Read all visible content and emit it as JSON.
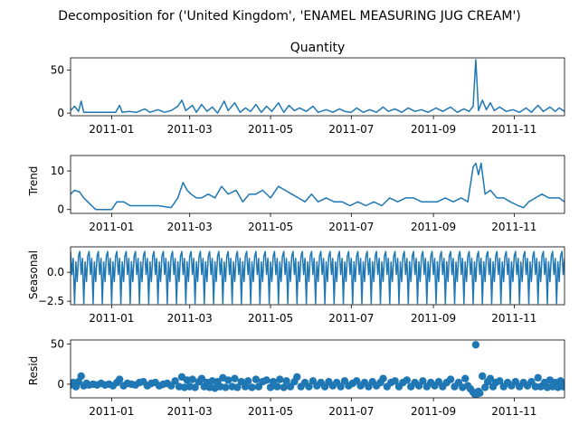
{
  "figure": {
    "suptitle": "Decomposition for ('United Kingdom', 'ENAMEL MEASURING JUG CREAM')"
  },
  "colors": {
    "series": "#1f77b4",
    "axis": "#000000",
    "background": "#ffffff"
  },
  "chart_data": [
    {
      "type": "line",
      "title": "Quantity",
      "ylabel": "",
      "x_range": [
        "2010-12-01",
        "2011-12-09"
      ],
      "x_ticks": [
        "2011-01",
        "2011-03",
        "2011-05",
        "2011-07",
        "2011-09",
        "2011-11"
      ],
      "ylim": [
        -3,
        64
      ],
      "y_ticks": [
        0,
        50
      ],
      "y_tick_labels": [
        "0",
        "50"
      ],
      "grid": false,
      "points": [
        [
          "2010-12-01",
          3
        ],
        [
          "2010-12-04",
          8
        ],
        [
          "2010-12-07",
          2
        ],
        [
          "2010-12-09",
          14
        ],
        [
          "2010-12-11",
          1
        ],
        [
          "2010-12-15",
          1
        ],
        [
          "2010-12-20",
          1
        ],
        [
          "2010-12-28",
          1
        ],
        [
          "2011-01-04",
          1
        ],
        [
          "2011-01-07",
          9
        ],
        [
          "2011-01-09",
          1
        ],
        [
          "2011-01-14",
          2
        ],
        [
          "2011-01-20",
          1
        ],
        [
          "2011-01-26",
          5
        ],
        [
          "2011-01-30",
          1
        ],
        [
          "2011-02-05",
          4
        ],
        [
          "2011-02-10",
          1
        ],
        [
          "2011-02-15",
          3
        ],
        [
          "2011-02-20",
          8
        ],
        [
          "2011-02-23",
          15
        ],
        [
          "2011-02-26",
          3
        ],
        [
          "2011-03-03",
          9
        ],
        [
          "2011-03-06",
          1
        ],
        [
          "2011-03-10",
          10
        ],
        [
          "2011-03-14",
          2
        ],
        [
          "2011-03-18",
          7
        ],
        [
          "2011-03-22",
          0
        ],
        [
          "2011-03-27",
          14
        ],
        [
          "2011-03-30",
          3
        ],
        [
          "2011-04-04",
          12
        ],
        [
          "2011-04-08",
          1
        ],
        [
          "2011-04-12",
          6
        ],
        [
          "2011-04-16",
          2
        ],
        [
          "2011-04-20",
          10
        ],
        [
          "2011-04-24",
          1
        ],
        [
          "2011-04-28",
          8
        ],
        [
          "2011-05-02",
          2
        ],
        [
          "2011-05-07",
          12
        ],
        [
          "2011-05-11",
          1
        ],
        [
          "2011-05-15",
          9
        ],
        [
          "2011-05-19",
          3
        ],
        [
          "2011-05-23",
          6
        ],
        [
          "2011-05-28",
          2
        ],
        [
          "2011-06-02",
          8
        ],
        [
          "2011-06-06",
          1
        ],
        [
          "2011-06-12",
          4
        ],
        [
          "2011-06-17",
          1
        ],
        [
          "2011-06-22",
          5
        ],
        [
          "2011-06-26",
          2
        ],
        [
          "2011-07-01",
          1
        ],
        [
          "2011-07-05",
          6
        ],
        [
          "2011-07-10",
          1
        ],
        [
          "2011-07-15",
          4
        ],
        [
          "2011-07-20",
          1
        ],
        [
          "2011-07-25",
          7
        ],
        [
          "2011-07-29",
          2
        ],
        [
          "2011-08-03",
          5
        ],
        [
          "2011-08-08",
          1
        ],
        [
          "2011-08-13",
          6
        ],
        [
          "2011-08-18",
          2
        ],
        [
          "2011-08-23",
          4
        ],
        [
          "2011-08-28",
          1
        ],
        [
          "2011-09-03",
          6
        ],
        [
          "2011-09-08",
          2
        ],
        [
          "2011-09-14",
          7
        ],
        [
          "2011-09-19",
          1
        ],
        [
          "2011-09-24",
          5
        ],
        [
          "2011-09-28",
          2
        ],
        [
          "2011-10-01",
          8
        ],
        [
          "2011-10-03",
          62
        ],
        [
          "2011-10-05",
          3
        ],
        [
          "2011-10-08",
          15
        ],
        [
          "2011-10-11",
          4
        ],
        [
          "2011-10-14",
          12
        ],
        [
          "2011-10-17",
          3
        ],
        [
          "2011-10-21",
          7
        ],
        [
          "2011-10-26",
          2
        ],
        [
          "2011-10-31",
          4
        ],
        [
          "2011-11-05",
          1
        ],
        [
          "2011-11-10",
          6
        ],
        [
          "2011-11-14",
          1
        ],
        [
          "2011-11-19",
          9
        ],
        [
          "2011-11-23",
          2
        ],
        [
          "2011-11-28",
          7
        ],
        [
          "2011-12-02",
          2
        ],
        [
          "2011-12-05",
          6
        ],
        [
          "2011-12-09",
          2
        ]
      ]
    },
    {
      "type": "line",
      "title": "",
      "ylabel": "Trend",
      "x_range": [
        "2010-12-01",
        "2011-12-09"
      ],
      "x_ticks": [
        "2011-01",
        "2011-03",
        "2011-05",
        "2011-07",
        "2011-09",
        "2011-11"
      ],
      "ylim": [
        -1,
        14
      ],
      "y_ticks": [
        0,
        10
      ],
      "y_tick_labels": [
        "0",
        "10"
      ],
      "grid": false,
      "points": [
        [
          "2010-12-01",
          4
        ],
        [
          "2010-12-04",
          5
        ],
        [
          "2010-12-08",
          4.5
        ],
        [
          "2010-12-11",
          3
        ],
        [
          "2010-12-14",
          2
        ],
        [
          "2010-12-17",
          1
        ],
        [
          "2010-12-20",
          0
        ],
        [
          "2011-01-01",
          0
        ],
        [
          "2011-01-05",
          2
        ],
        [
          "2011-01-10",
          2
        ],
        [
          "2011-01-15",
          1
        ],
        [
          "2011-01-25",
          1
        ],
        [
          "2011-02-05",
          1
        ],
        [
          "2011-02-15",
          0.5
        ],
        [
          "2011-02-20",
          3
        ],
        [
          "2011-02-24",
          7
        ],
        [
          "2011-02-27",
          5
        ],
        [
          "2011-03-02",
          4
        ],
        [
          "2011-03-06",
          3
        ],
        [
          "2011-03-10",
          3
        ],
        [
          "2011-03-15",
          4
        ],
        [
          "2011-03-20",
          3
        ],
        [
          "2011-03-25",
          6
        ],
        [
          "2011-03-30",
          4
        ],
        [
          "2011-04-05",
          5
        ],
        [
          "2011-04-10",
          2
        ],
        [
          "2011-04-15",
          4
        ],
        [
          "2011-04-20",
          4
        ],
        [
          "2011-04-25",
          5
        ],
        [
          "2011-05-01",
          3
        ],
        [
          "2011-05-07",
          6
        ],
        [
          "2011-05-12",
          5
        ],
        [
          "2011-05-17",
          4
        ],
        [
          "2011-05-22",
          3
        ],
        [
          "2011-05-27",
          2
        ],
        [
          "2011-06-01",
          4
        ],
        [
          "2011-06-06",
          2
        ],
        [
          "2011-06-12",
          3
        ],
        [
          "2011-06-18",
          2
        ],
        [
          "2011-06-24",
          2
        ],
        [
          "2011-06-30",
          1
        ],
        [
          "2011-07-06",
          2
        ],
        [
          "2011-07-12",
          1
        ],
        [
          "2011-07-18",
          2
        ],
        [
          "2011-07-24",
          1
        ],
        [
          "2011-07-30",
          3
        ],
        [
          "2011-08-05",
          2
        ],
        [
          "2011-08-11",
          3
        ],
        [
          "2011-08-17",
          3
        ],
        [
          "2011-08-23",
          2
        ],
        [
          "2011-08-29",
          2
        ],
        [
          "2011-09-04",
          2
        ],
        [
          "2011-09-10",
          3
        ],
        [
          "2011-09-16",
          2
        ],
        [
          "2011-09-22",
          3
        ],
        [
          "2011-09-27",
          2
        ],
        [
          "2011-10-01",
          11
        ],
        [
          "2011-10-03",
          12
        ],
        [
          "2011-10-05",
          9
        ],
        [
          "2011-10-07",
          12
        ],
        [
          "2011-10-10",
          4
        ],
        [
          "2011-10-14",
          5
        ],
        [
          "2011-10-19",
          3
        ],
        [
          "2011-10-24",
          3
        ],
        [
          "2011-10-29",
          2
        ],
        [
          "2011-11-04",
          1
        ],
        [
          "2011-11-08",
          0.5
        ],
        [
          "2011-11-12",
          2
        ],
        [
          "2011-11-17",
          3
        ],
        [
          "2011-11-22",
          4
        ],
        [
          "2011-11-27",
          3
        ],
        [
          "2011-12-01",
          3
        ],
        [
          "2011-12-05",
          3
        ],
        [
          "2011-12-09",
          2
        ]
      ]
    },
    {
      "type": "line",
      "title": "",
      "ylabel": "Seasonal",
      "x_range": [
        "2010-12-01",
        "2011-12-09"
      ],
      "x_ticks": [
        "2011-01",
        "2011-03",
        "2011-05",
        "2011-07",
        "2011-09",
        "2011-11"
      ],
      "ylim": [
        -2.8,
        2.2
      ],
      "y_ticks": [
        0,
        -2.5
      ],
      "y_tick_labels": [
        "0.0",
        "−2.5"
      ],
      "grid": false,
      "period_days": 7,
      "weekly_pattern": [
        1.8,
        -0.2,
        1.2,
        -2.7,
        0.9,
        -0.8,
        1.4
      ]
    },
    {
      "type": "scatter",
      "title": "",
      "ylabel": "Resid",
      "x_range": [
        "2010-12-01",
        "2011-12-09"
      ],
      "x_ticks": [
        "2011-01",
        "2011-03",
        "2011-05",
        "2011-07",
        "2011-09",
        "2011-11"
      ],
      "ylim": [
        -17,
        55
      ],
      "y_ticks": [
        0,
        50
      ],
      "y_tick_labels": [
        "0",
        "50"
      ],
      "grid": false,
      "points": [
        [
          "2010-12-01",
          -1
        ],
        [
          "2010-12-03",
          2
        ],
        [
          "2010-12-05",
          -3
        ],
        [
          "2010-12-07",
          3
        ],
        [
          "2010-12-09",
          10
        ],
        [
          "2010-12-11",
          -2
        ],
        [
          "2010-12-13",
          1
        ],
        [
          "2010-12-15",
          -1
        ],
        [
          "2010-12-18",
          0
        ],
        [
          "2010-12-21",
          -1
        ],
        [
          "2010-12-24",
          1
        ],
        [
          "2010-12-27",
          -1
        ],
        [
          "2010-12-30",
          0
        ],
        [
          "2011-01-02",
          -2
        ],
        [
          "2011-01-05",
          2
        ],
        [
          "2011-01-07",
          6
        ],
        [
          "2011-01-10",
          -2
        ],
        [
          "2011-01-13",
          1
        ],
        [
          "2011-01-16",
          0
        ],
        [
          "2011-01-19",
          -1
        ],
        [
          "2011-01-22",
          2
        ],
        [
          "2011-01-25",
          3
        ],
        [
          "2011-01-28",
          -2
        ],
        [
          "2011-01-31",
          1
        ],
        [
          "2011-02-03",
          2
        ],
        [
          "2011-02-06",
          -2
        ],
        [
          "2011-02-09",
          0
        ],
        [
          "2011-02-12",
          1
        ],
        [
          "2011-02-15",
          -2
        ],
        [
          "2011-02-18",
          4
        ],
        [
          "2011-02-21",
          -3
        ],
        [
          "2011-02-23",
          9
        ],
        [
          "2011-02-25",
          -4
        ],
        [
          "2011-02-27",
          5
        ],
        [
          "2011-03-01",
          -3
        ],
        [
          "2011-03-03",
          6
        ],
        [
          "2011-03-05",
          -4
        ],
        [
          "2011-03-08",
          3
        ],
        [
          "2011-03-10",
          7
        ],
        [
          "2011-03-12",
          -3
        ],
        [
          "2011-03-14",
          2
        ],
        [
          "2011-03-16",
          -4
        ],
        [
          "2011-03-18",
          4
        ],
        [
          "2011-03-20",
          -5
        ],
        [
          "2011-03-22",
          3
        ],
        [
          "2011-03-24",
          -3
        ],
        [
          "2011-03-26",
          8
        ],
        [
          "2011-03-28",
          -4
        ],
        [
          "2011-03-30",
          5
        ],
        [
          "2011-04-02",
          -3
        ],
        [
          "2011-04-04",
          7
        ],
        [
          "2011-04-06",
          -4
        ],
        [
          "2011-04-09",
          3
        ],
        [
          "2011-04-12",
          -3
        ],
        [
          "2011-04-14",
          4
        ],
        [
          "2011-04-17",
          -4
        ],
        [
          "2011-04-20",
          6
        ],
        [
          "2011-04-22",
          -3
        ],
        [
          "2011-04-25",
          3
        ],
        [
          "2011-04-28",
          5
        ],
        [
          "2011-05-01",
          -4
        ],
        [
          "2011-05-03",
          3
        ],
        [
          "2011-05-06",
          -3
        ],
        [
          "2011-05-08",
          6
        ],
        [
          "2011-05-11",
          -4
        ],
        [
          "2011-05-13",
          4
        ],
        [
          "2011-05-16",
          -3
        ],
        [
          "2011-05-19",
          3
        ],
        [
          "2011-05-21",
          9
        ],
        [
          "2011-05-24",
          -3
        ],
        [
          "2011-05-27",
          2
        ],
        [
          "2011-05-30",
          -3
        ],
        [
          "2011-06-02",
          4
        ],
        [
          "2011-06-05",
          -2
        ],
        [
          "2011-06-08",
          2
        ],
        [
          "2011-06-11",
          -3
        ],
        [
          "2011-06-14",
          3
        ],
        [
          "2011-06-17",
          -2
        ],
        [
          "2011-06-20",
          2
        ],
        [
          "2011-06-23",
          -3
        ],
        [
          "2011-06-26",
          4
        ],
        [
          "2011-06-29",
          -2
        ],
        [
          "2011-07-02",
          1
        ],
        [
          "2011-07-05",
          4
        ],
        [
          "2011-07-08",
          -2
        ],
        [
          "2011-07-11",
          2
        ],
        [
          "2011-07-14",
          -3
        ],
        [
          "2011-07-17",
          3
        ],
        [
          "2011-07-20",
          -2
        ],
        [
          "2011-07-23",
          2
        ],
        [
          "2011-07-25",
          7
        ],
        [
          "2011-07-28",
          -3
        ],
        [
          "2011-07-31",
          2
        ],
        [
          "2011-08-03",
          4
        ],
        [
          "2011-08-06",
          -3
        ],
        [
          "2011-08-09",
          2
        ],
        [
          "2011-08-12",
          5
        ],
        [
          "2011-08-15",
          -3
        ],
        [
          "2011-08-18",
          2
        ],
        [
          "2011-08-21",
          -2
        ],
        [
          "2011-08-24",
          4
        ],
        [
          "2011-08-27",
          -3
        ],
        [
          "2011-08-30",
          2
        ],
        [
          "2011-09-02",
          -2
        ],
        [
          "2011-09-05",
          3
        ],
        [
          "2011-09-08",
          -3
        ],
        [
          "2011-09-11",
          2
        ],
        [
          "2011-09-14",
          6
        ],
        [
          "2011-09-17",
          -3
        ],
        [
          "2011-09-20",
          2
        ],
        [
          "2011-09-23",
          -4
        ],
        [
          "2011-09-25",
          7
        ],
        [
          "2011-09-27",
          -2
        ],
        [
          "2011-09-29",
          -6
        ],
        [
          "2011-10-01",
          -10
        ],
        [
          "2011-10-02",
          -12
        ],
        [
          "2011-10-03",
          49
        ],
        [
          "2011-10-04",
          -12
        ],
        [
          "2011-10-05",
          -9
        ],
        [
          "2011-10-06",
          -11
        ],
        [
          "2011-10-08",
          10
        ],
        [
          "2011-10-10",
          -4
        ],
        [
          "2011-10-12",
          3
        ],
        [
          "2011-10-14",
          7
        ],
        [
          "2011-10-16",
          -3
        ],
        [
          "2011-10-18",
          2
        ],
        [
          "2011-10-21",
          4
        ],
        [
          "2011-10-24",
          -3
        ],
        [
          "2011-10-27",
          2
        ],
        [
          "2011-10-30",
          -2
        ],
        [
          "2011-11-02",
          3
        ],
        [
          "2011-11-05",
          -3
        ],
        [
          "2011-11-08",
          2
        ],
        [
          "2011-11-11",
          -2
        ],
        [
          "2011-11-14",
          3
        ],
        [
          "2011-11-17",
          -3
        ],
        [
          "2011-11-19",
          8
        ],
        [
          "2011-11-21",
          -3
        ],
        [
          "2011-11-24",
          2
        ],
        [
          "2011-11-26",
          -4
        ],
        [
          "2011-11-28",
          5
        ],
        [
          "2011-11-30",
          -3
        ],
        [
          "2011-12-02",
          2
        ],
        [
          "2011-12-04",
          -4
        ],
        [
          "2011-12-06",
          4
        ],
        [
          "2011-12-08",
          -3
        ],
        [
          "2011-12-09",
          -2
        ]
      ]
    }
  ]
}
